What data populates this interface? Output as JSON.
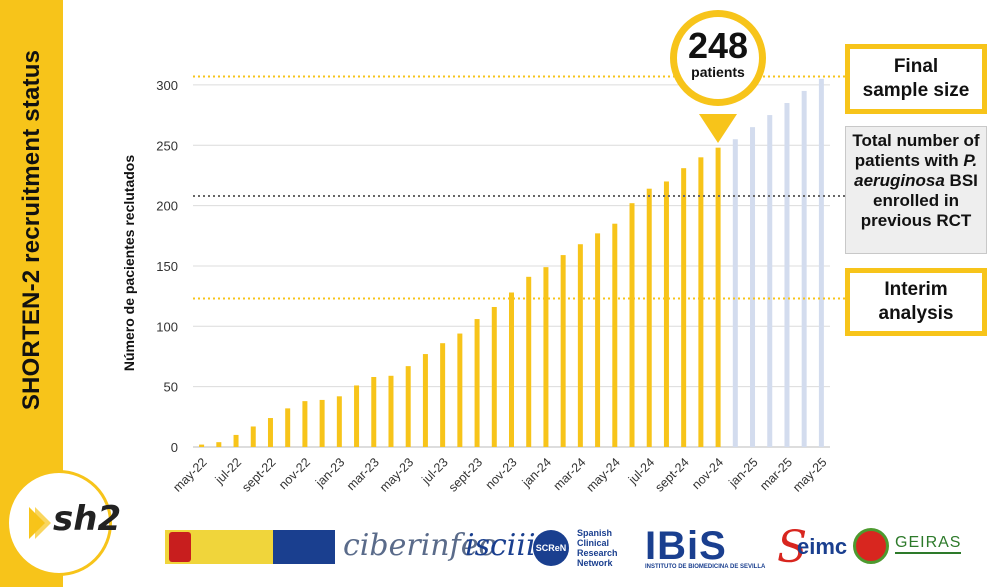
{
  "sidebar": {
    "title": "SHORTEN-2 recruitment status"
  },
  "logo": {
    "text": "sh2"
  },
  "chart_data": {
    "type": "bar",
    "ylabel": "Número de pacientes reclutados",
    "xlabel": "",
    "ylim": [
      0,
      310
    ],
    "yticks": [
      0,
      50,
      100,
      150,
      200,
      250,
      300
    ],
    "grid": true,
    "categories": [
      "may-22",
      "jun-22",
      "jul-22",
      "ago-22",
      "sept-22",
      "oct-22",
      "nov-22",
      "dic-22",
      "jan-23",
      "feb-23",
      "mar-23",
      "abr-23",
      "may-23",
      "jun-23",
      "jul-23",
      "ago-23",
      "sept-23",
      "oct-23",
      "nov-23",
      "dic-23",
      "jan-24",
      "feb-24",
      "mar-24",
      "abr-24",
      "may-24",
      "jun-24",
      "jul-24",
      "ago-24",
      "sept-24",
      "oct-24",
      "nov-24",
      "dic-24",
      "jan-25",
      "feb-25",
      "mar-25",
      "abr-25",
      "may-25"
    ],
    "xtick_labels": [
      "may-22",
      "jul-22",
      "sept-22",
      "nov-22",
      "jan-23",
      "mar-23",
      "may-23",
      "jul-23",
      "sept-23",
      "nov-23",
      "jan-24",
      "mar-24",
      "may-24",
      "jul-24",
      "sept-24",
      "nov-24",
      "jan-25",
      "mar-25",
      "may-25"
    ],
    "series": [
      {
        "values": [
          2,
          4,
          10,
          17,
          24,
          32,
          38,
          39,
          42,
          51,
          58,
          59,
          67,
          77,
          86,
          94,
          106,
          116,
          128,
          141,
          149,
          159,
          168,
          177,
          185,
          202,
          214,
          220,
          231,
          240,
          248,
          null,
          null,
          null,
          null,
          null,
          null
        ],
        "color": "#f7c41a"
      },
      {
        "values": [
          null,
          null,
          null,
          null,
          null,
          null,
          null,
          null,
          null,
          null,
          null,
          null,
          null,
          null,
          null,
          null,
          null,
          null,
          null,
          null,
          null,
          null,
          null,
          null,
          null,
          null,
          null,
          null,
          null,
          null,
          null,
          255,
          265,
          275,
          285,
          295,
          305
        ],
        "color": "#d3dcee"
      }
    ],
    "reference_lines": [
      {
        "value": 307,
        "color": "#f7c41a",
        "style": "dotted"
      },
      {
        "value": 208,
        "color": "#666666",
        "style": "dotted"
      },
      {
        "value": 123,
        "color": "#f7c41a",
        "style": "dotted"
      }
    ]
  },
  "bubble": {
    "number": "248",
    "label": "patients"
  },
  "callouts": {
    "final": "Final sample size",
    "previous_line1": "Total number of patients with",
    "previous_species": "P. aeruginosa",
    "previous_line2": "BSI enrolled in previous RCT",
    "interim": "Interim analysis"
  },
  "logos": {
    "ciberinfec": "ciberinfec",
    "isciii": "isciii",
    "screen_short": "SCReN",
    "screen_lines": [
      "Spanish",
      "Clinical",
      "Research",
      "Network"
    ],
    "ibis": "IBiS",
    "ibis_sub": "INSTITUTO DE BIOMEDICINA DE SEVILLA",
    "seimc": "eimc",
    "geiras": "GEIRAS"
  }
}
